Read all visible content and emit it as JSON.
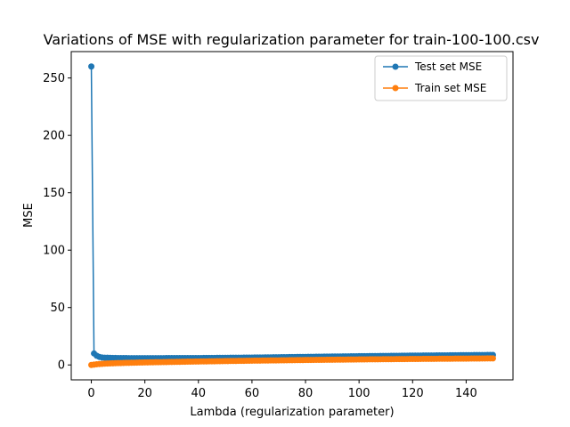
{
  "chart_data": {
    "type": "line",
    "title": "Variations of MSE with regularization parameter for train-100-100.csv",
    "xlabel": "Lambda (regularization parameter)",
    "ylabel": "MSE",
    "xlim": [
      -7.5,
      157.5
    ],
    "ylim": [
      -13,
      273
    ],
    "xticks": [
      0,
      20,
      40,
      60,
      80,
      100,
      120,
      140
    ],
    "yticks": [
      0,
      50,
      100,
      150,
      200,
      250
    ],
    "grid": false,
    "legend_position": "top-right",
    "x": {
      "start": 0,
      "end": 150,
      "step": 1
    },
    "series": [
      {
        "name": "Test set MSE",
        "color": "#1f77b4",
        "anchors": [
          [
            0,
            260
          ],
          [
            1,
            10
          ],
          [
            2,
            8
          ],
          [
            3,
            7
          ],
          [
            4,
            6.5
          ],
          [
            5,
            6.3
          ],
          [
            10,
            6.0
          ],
          [
            15,
            5.9
          ],
          [
            20,
            5.9
          ],
          [
            40,
            6.0
          ],
          [
            60,
            6.4
          ],
          [
            80,
            7.0
          ],
          [
            100,
            7.6
          ],
          [
            120,
            8.1
          ],
          [
            150,
            8.7
          ]
        ]
      },
      {
        "name": "Train set MSE",
        "color": "#ff7f0e",
        "anchors": [
          [
            0,
            0
          ],
          [
            1,
            0.3
          ],
          [
            2,
            0.6
          ],
          [
            3,
            0.8
          ],
          [
            5,
            1.1
          ],
          [
            10,
            1.6
          ],
          [
            20,
            2.2
          ],
          [
            40,
            3.0
          ],
          [
            60,
            3.7
          ],
          [
            80,
            4.3
          ],
          [
            100,
            4.8
          ],
          [
            120,
            5.2
          ],
          [
            150,
            5.7
          ]
        ]
      }
    ]
  }
}
